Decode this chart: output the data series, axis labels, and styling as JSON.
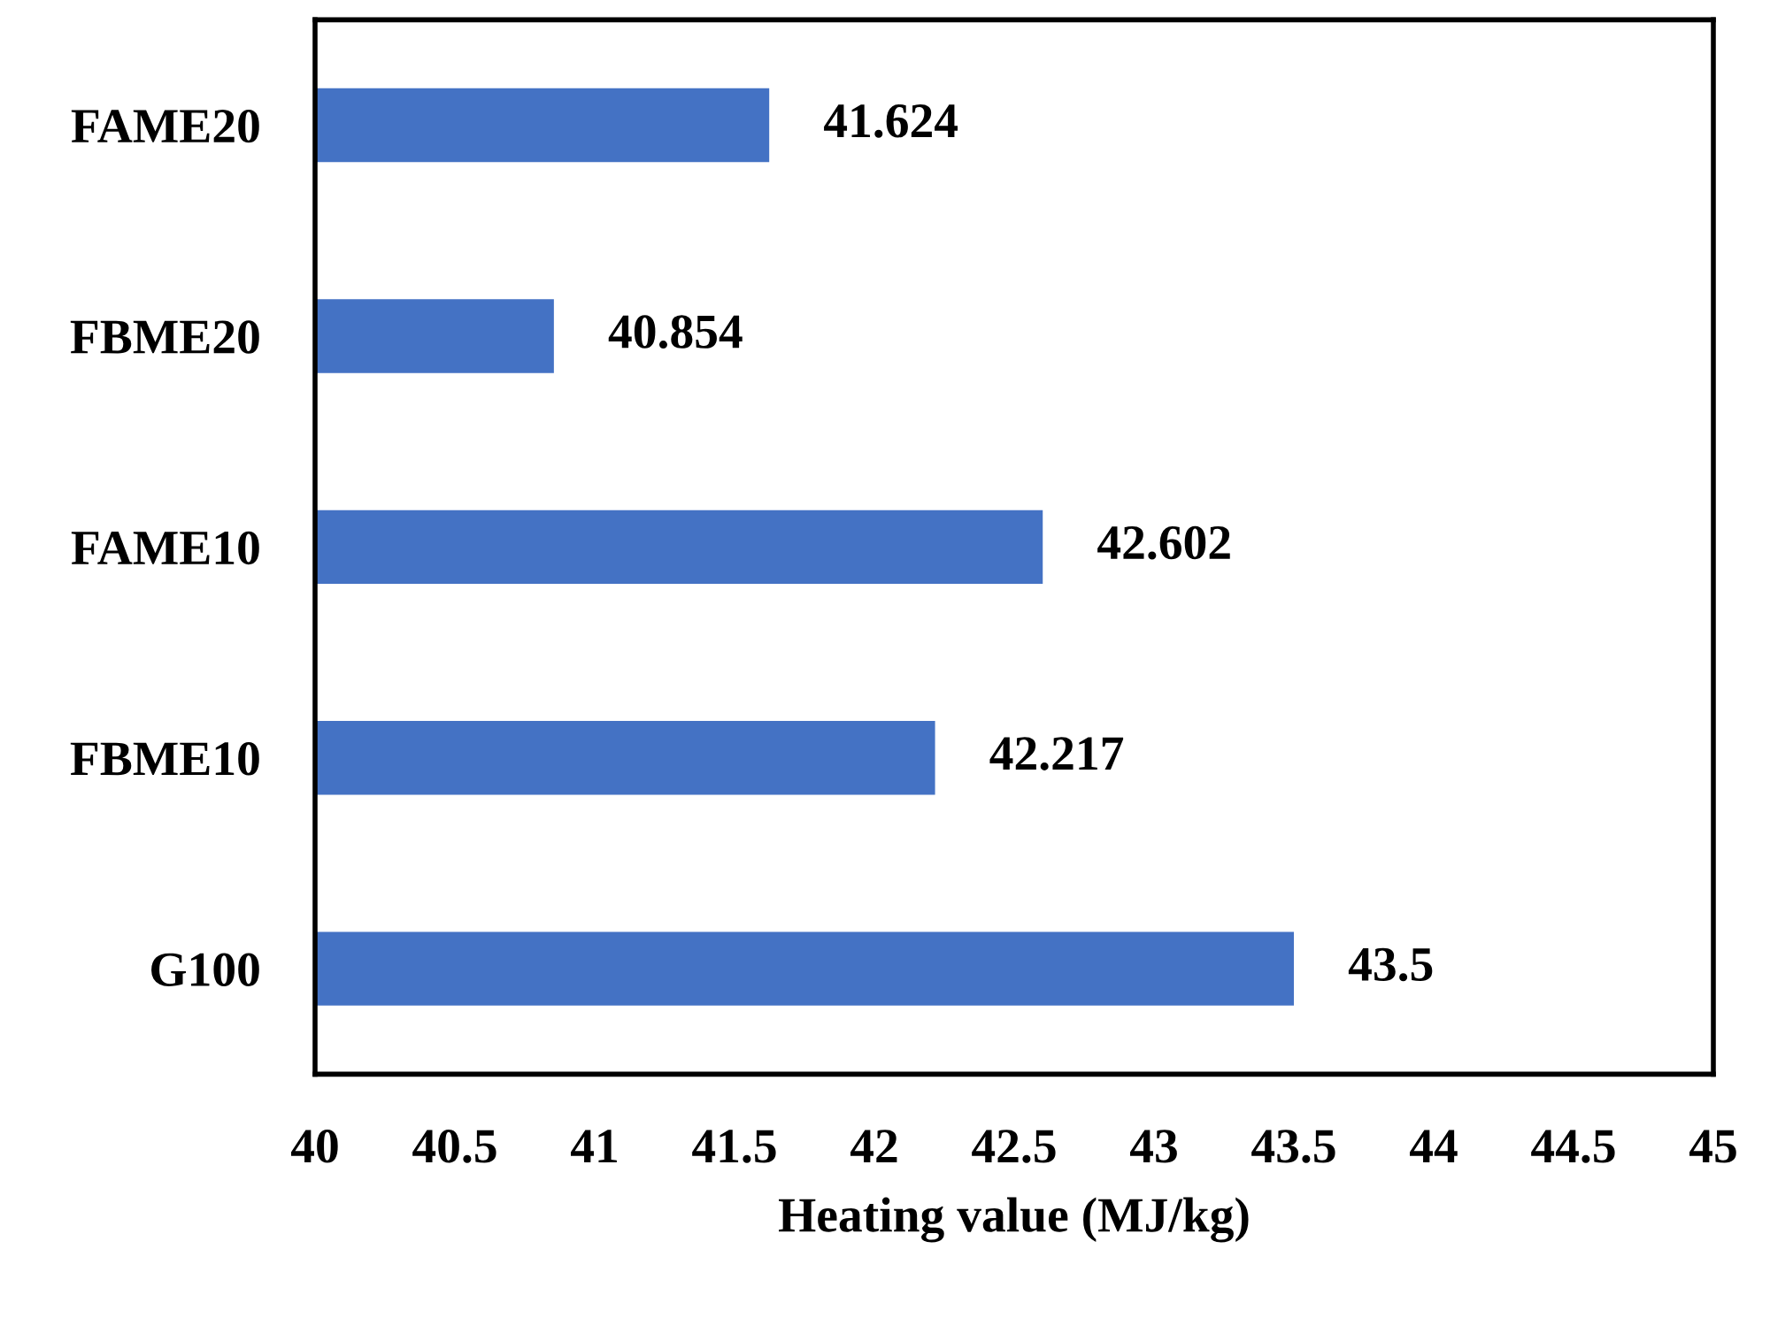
{
  "chart_data": {
    "type": "bar",
    "orientation": "horizontal",
    "xlabel": "Heating value (MJ/kg)",
    "categories": [
      "FAME20",
      "FBME20",
      "FAME10",
      "FBME10",
      "G100"
    ],
    "values": [
      41.624,
      40.854,
      42.602,
      42.217,
      43.5
    ],
    "color": "#4472c4",
    "xlim": [
      40,
      45
    ],
    "xticks": [
      40,
      40.5,
      41,
      41.5,
      42,
      42.5,
      43,
      43.5,
      44,
      44.5,
      45
    ],
    "data_labels": true,
    "grid": false,
    "legend": false
  }
}
